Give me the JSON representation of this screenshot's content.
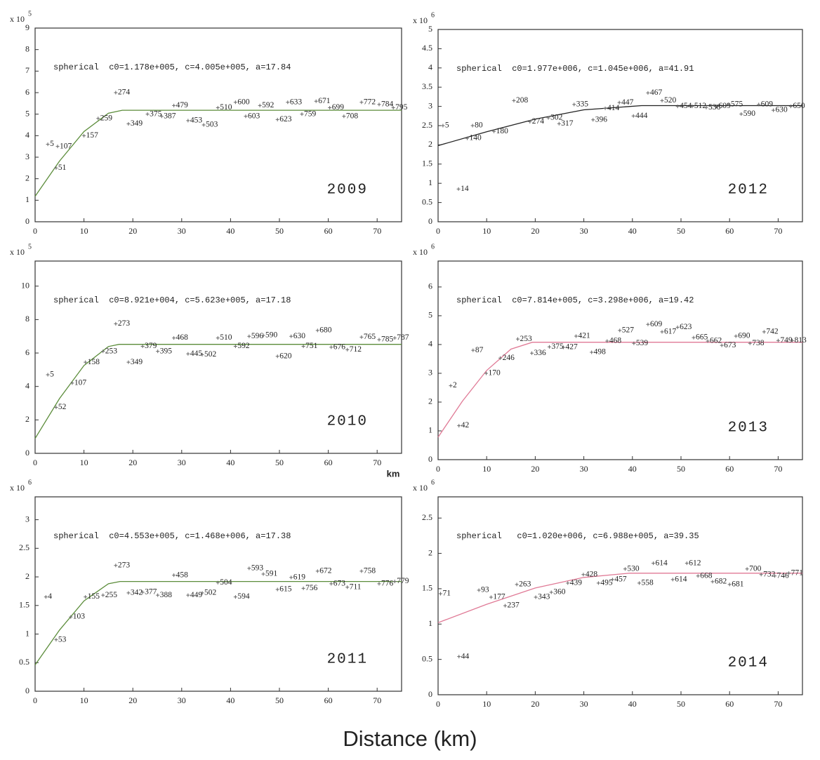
{
  "figure": {
    "xlabel": "Distance (km)"
  },
  "chart_data": [
    {
      "type": "scatter",
      "year_label": "2009",
      "annotation": "spherical  c0=1.178e+005, c=4.005e+005, a=17.84",
      "y_multiplier": "x 10",
      "y_exponent": 5,
      "xlim": [
        0,
        75
      ],
      "xticks": [
        0,
        10,
        20,
        30,
        40,
        50,
        60,
        70
      ],
      "ylim": [
        0,
        9
      ],
      "yticks": [
        0,
        1,
        2,
        3,
        4,
        5,
        6,
        7,
        8,
        9
      ],
      "x": [
        2.6,
        4.3,
        4.6,
        10,
        12.9,
        16.5,
        19.1,
        23,
        25.9,
        28.4,
        31.3,
        34.5,
        37.4,
        41,
        43.1,
        46,
        49.6,
        51.7,
        54.6,
        57.5,
        60.3,
        63.2,
        66.8,
        70.4,
        73.3
      ],
      "values": [
        3.6,
        2.5,
        3.5,
        4.0,
        4.8,
        6.0,
        4.55,
        5.0,
        4.9,
        5.4,
        4.7,
        4.5,
        5.3,
        5.55,
        4.9,
        5.4,
        4.75,
        5.55,
        5.0,
        5.6,
        5.3,
        4.9,
        5.55,
        5.45,
        5.3
      ],
      "point_labels": [
        5,
        51,
        107,
        157,
        259,
        274,
        349,
        375,
        387,
        479,
        453,
        503,
        510,
        600,
        603,
        592,
        623,
        633,
        759,
        671,
        699,
        708,
        772,
        784,
        795
      ],
      "point_color": "#666666",
      "fit_x": [
        0,
        5,
        10,
        15,
        17.84,
        75
      ],
      "fit_values": [
        1.18,
        2.82,
        4.19,
        5.04,
        5.18,
        5.18
      ],
      "fit_color": "#5b8c3a"
    },
    {
      "type": "scatter",
      "year_label": "2012",
      "annotation": "spherical  c0=1.977e+006, c=1.045e+006, a=41.91",
      "y_multiplier": "x 10",
      "y_exponent": 6,
      "xlim": [
        0,
        75
      ],
      "xticks": [
        0,
        10,
        20,
        30,
        40,
        50,
        60,
        70
      ],
      "ylim": [
        0,
        5
      ],
      "yticks": [
        0,
        0.5,
        1,
        1.5,
        2,
        2.5,
        3,
        3.5,
        4,
        4.5,
        5
      ],
      "x": [
        1,
        4.2,
        7.1,
        6,
        11.5,
        15.6,
        18.9,
        22.7,
        24.9,
        28,
        31.9,
        34.4,
        37.3,
        40.2,
        43.2,
        46.1,
        49.3,
        52.3,
        55.2,
        57.3,
        59.8,
        62.4,
        66,
        69,
        72.6
      ],
      "values": [
        2.5,
        0.85,
        2.5,
        2.17,
        2.35,
        3.15,
        2.6,
        2.7,
        2.55,
        3.05,
        2.65,
        2.95,
        3.1,
        2.75,
        3.35,
        3.15,
        3.0,
        3.0,
        2.97,
        3.0,
        3.05,
        2.8,
        3.05,
        2.9,
        3.0
      ],
      "point_labels": [
        5,
        14,
        80,
        140,
        180,
        208,
        274,
        302,
        317,
        335,
        396,
        414,
        447,
        444,
        467,
        520,
        454,
        512,
        536,
        609,
        575,
        590,
        609,
        630,
        650
      ],
      "point_color": "#666666",
      "fit_x": [
        0,
        10,
        20,
        30,
        41.91,
        75
      ],
      "fit_values": [
        1.98,
        2.34,
        2.67,
        2.91,
        3.02,
        3.02
      ],
      "fit_color": "#222222"
    },
    {
      "type": "scatter",
      "year_label": "2010",
      "annotation": "spherical  c0=8.921e+004, c=5.623e+005, a=17.18",
      "y_multiplier": "x 10",
      "y_exponent": 5,
      "xlabel": "km",
      "xlim": [
        0,
        75
      ],
      "xticks": [
        0,
        10,
        20,
        30,
        40,
        50,
        60,
        70
      ],
      "ylim": [
        0,
        11.5
      ],
      "yticks": [
        0,
        2,
        4,
        6,
        8,
        10
      ],
      "x": [
        2.6,
        4.3,
        7.6,
        10.3,
        13.9,
        16.5,
        19.1,
        22,
        25.1,
        28.4,
        31.3,
        34.2,
        37.4,
        41,
        43.8,
        46.7,
        49.6,
        52.4,
        54.9,
        57.8,
        60.6,
        63.9,
        66.8,
        70.4,
        73.6
      ],
      "values": [
        4.7,
        2.75,
        4.2,
        5.45,
        6.1,
        7.75,
        5.45,
        6.4,
        6.1,
        6.9,
        5.95,
        5.9,
        6.9,
        6.4,
        7.0,
        7.05,
        5.8,
        7.0,
        6.4,
        7.35,
        6.35,
        6.2,
        6.95,
        6.8,
        6.9
      ],
      "point_labels": [
        5,
        52,
        107,
        158,
        253,
        273,
        349,
        379,
        395,
        468,
        445,
        502,
        510,
        592,
        596,
        590,
        620,
        630,
        751,
        680,
        676,
        712,
        765,
        785,
        787
      ],
      "point_color": "#666666",
      "fit_x": [
        0,
        5,
        10,
        15,
        17.18,
        75
      ],
      "fit_values": [
        0.89,
        3.28,
        5.25,
        6.39,
        6.52,
        6.52
      ],
      "fit_color": "#5b8c3a"
    },
    {
      "type": "scatter",
      "year_label": "2013",
      "annotation": "spherical  c0=7.814e+005, c=3.298e+006, a=19.42",
      "y_multiplier": "x 10",
      "y_exponent": 6,
      "xlim": [
        0,
        75
      ],
      "xticks": [
        0,
        10,
        20,
        30,
        40,
        50,
        60,
        70
      ],
      "ylim": [
        0,
        6.9
      ],
      "yticks": [
        0,
        1,
        2,
        3,
        4,
        5,
        6
      ],
      "x": [
        2.6,
        4.3,
        7.2,
        9.9,
        12.8,
        16.4,
        19.3,
        22.9,
        25.8,
        28.4,
        31.6,
        34.8,
        37.4,
        40.3,
        43.2,
        46.1,
        49.3,
        52.6,
        55.5,
        58.4,
        61.3,
        64.2,
        67.1,
        70,
        72.9
      ],
      "values": [
        2.57,
        1.18,
        3.8,
        3.0,
        3.53,
        4.19,
        3.7,
        3.92,
        3.9,
        4.29,
        3.73,
        4.12,
        4.49,
        4.04,
        4.7,
        4.44,
        4.6,
        4.24,
        4.12,
        3.97,
        4.29,
        4.04,
        4.44,
        4.14,
        4.14
      ],
      "point_labels": [
        2,
        42,
        87,
        170,
        246,
        253,
        336,
        375,
        427,
        421,
        498,
        468,
        527,
        539,
        609,
        617,
        623,
        665,
        662,
        673,
        690,
        738,
        742,
        749,
        813
      ],
      "point_color": "#666666",
      "fit_x": [
        0,
        5,
        10,
        15,
        19.42,
        75
      ],
      "fit_values": [
        0.78,
        2.03,
        3.1,
        3.84,
        4.08,
        4.08
      ],
      "fit_color": "#e07a96"
    },
    {
      "type": "scatter",
      "year_label": "2011",
      "annotation": "spherical  c0=4.553e+005, c=1.468e+006, a=17.38",
      "y_multiplier": "x 10",
      "y_exponent": 6,
      "xlim": [
        0,
        75
      ],
      "xticks": [
        0,
        10,
        20,
        30,
        40,
        50,
        60,
        70
      ],
      "ylim": [
        0,
        3.4
      ],
      "yticks": [
        0,
        0.5,
        1,
        1.5,
        2,
        2.5,
        3
      ],
      "x": [
        2.2,
        4.3,
        7.3,
        10.3,
        13.9,
        16.5,
        19.1,
        22,
        25.1,
        28.4,
        31.3,
        34.2,
        37.4,
        41,
        43.8,
        46.7,
        49.6,
        52.4,
        54.9,
        57.8,
        60.6,
        63.9,
        66.8,
        70.4,
        73.6
      ],
      "values": [
        1.65,
        0.9,
        1.3,
        1.65,
        1.68,
        2.2,
        1.72,
        1.73,
        1.68,
        2.03,
        1.68,
        1.72,
        1.9,
        1.65,
        2.15,
        2.05,
        1.78,
        1.99,
        1.8,
        2.1,
        1.88,
        1.82,
        2.1,
        1.88,
        1.92
      ],
      "point_labels": [
        4,
        53,
        103,
        155,
        255,
        273,
        342,
        377,
        388,
        458,
        449,
        502,
        504,
        594,
        593,
        591,
        615,
        619,
        756,
        672,
        673,
        711,
        758,
        776,
        779
      ],
      "point_color": "#666666",
      "fit_x": [
        0,
        5,
        10,
        15,
        17.38,
        75
      ],
      "fit_values": [
        0.46,
        1.07,
        1.58,
        1.88,
        1.92,
        1.92
      ],
      "fit_color": "#5b8c3a"
    },
    {
      "type": "scatter",
      "year_label": "2014",
      "annotation": "spherical   c0=1.020e+006, c=6.988e+005, a=39.35",
      "y_multiplier": "x 10",
      "y_exponent": 6,
      "xlim": [
        0,
        75
      ],
      "xticks": [
        0,
        10,
        20,
        30,
        40,
        50,
        60,
        70
      ],
      "ylim": [
        0,
        2.8
      ],
      "yticks": [
        0,
        0.5,
        1,
        1.5,
        2,
        2.5
      ],
      "x": [
        0.5,
        4.3,
        8.4,
        10.9,
        13.8,
        16.2,
        20.1,
        23.3,
        26.7,
        29.9,
        33,
        35.9,
        38.5,
        41.4,
        44.3,
        48.3,
        51.2,
        53.5,
        56.5,
        60,
        63.6,
        66.5,
        69.3,
        72.2
      ],
      "values": [
        1.43,
        0.54,
        1.48,
        1.38,
        1.26,
        1.56,
        1.38,
        1.45,
        1.58,
        1.7,
        1.58,
        1.63,
        1.78,
        1.58,
        1.86,
        1.63,
        1.86,
        1.68,
        1.6,
        1.56,
        1.78,
        1.7,
        1.68,
        1.72
      ],
      "point_labels": [
        71,
        44,
        93,
        177,
        237,
        263,
        343,
        360,
        439,
        428,
        495,
        457,
        530,
        558,
        614,
        614,
        612,
        668,
        682,
        681,
        700,
        732,
        746,
        771
      ],
      "point_color": "#666666",
      "fit_x": [
        0,
        10,
        20,
        30,
        39.35,
        75
      ],
      "fit_values": [
        1.02,
        1.28,
        1.51,
        1.66,
        1.72,
        1.72
      ],
      "fit_color": "#e07a96"
    }
  ]
}
